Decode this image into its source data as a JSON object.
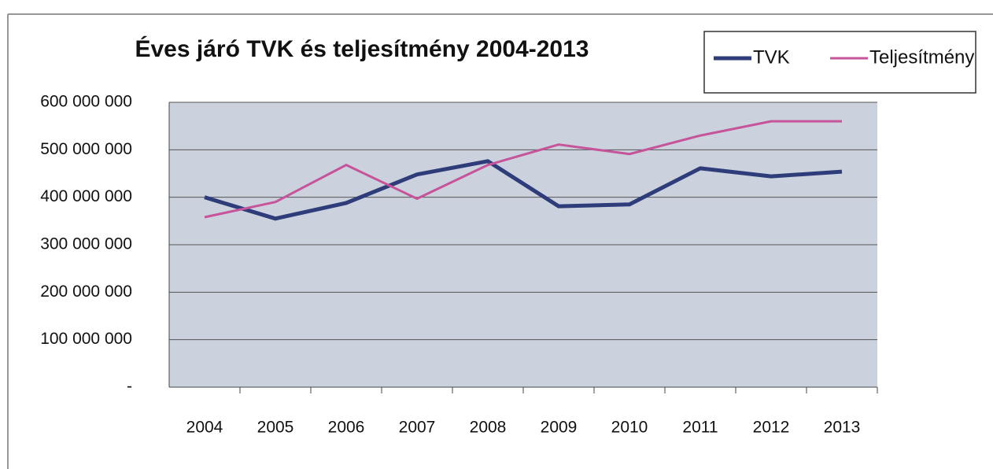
{
  "chart_data": {
    "type": "line",
    "title": "Éves járó TVK és teljesítmény 2004-2013",
    "categories": [
      "2004",
      "2005",
      "2006",
      "2007",
      "2008",
      "2009",
      "2010",
      "2011",
      "2012",
      "2013"
    ],
    "series": [
      {
        "name": "TVK",
        "color": "#2e3d7a",
        "values": [
          400000000,
          355000000,
          388000000,
          448000000,
          476000000,
          381000000,
          385000000,
          461000000,
          444000000,
          454000000
        ]
      },
      {
        "name": "Teljesítmény",
        "color": "#c6549a",
        "values": [
          358000000,
          390000000,
          468000000,
          397000000,
          468000000,
          511000000,
          491000000,
          530000000,
          560000000,
          560000000
        ]
      }
    ],
    "ylim": [
      0,
      600000000
    ],
    "yticks": [
      {
        "value": 0,
        "label": "-"
      },
      {
        "value": 100000000,
        "label": "100 000 000"
      },
      {
        "value": 200000000,
        "label": "200 000 000"
      },
      {
        "value": 300000000,
        "label": "300 000 000"
      },
      {
        "value": 400000000,
        "label": "400 000 000"
      },
      {
        "value": 500000000,
        "label": "500 000 000"
      },
      {
        "value": 600000000,
        "label": "600 000 000"
      }
    ],
    "grid": true,
    "legend": "top-right"
  }
}
